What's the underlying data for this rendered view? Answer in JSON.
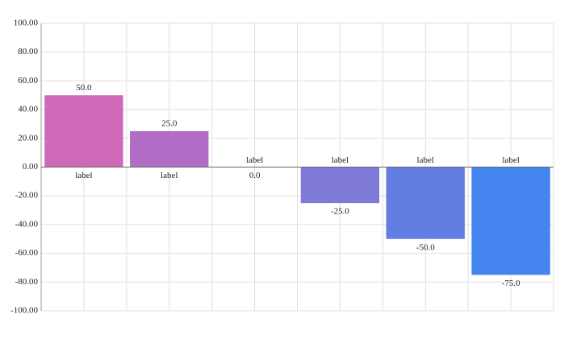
{
  "chart_data": {
    "type": "bar",
    "categories": [
      "label",
      "label",
      "label",
      "label",
      "label",
      "label"
    ],
    "values": [
      50,
      25,
      0,
      -25,
      -50,
      -75
    ],
    "value_labels": [
      "50.0",
      "25.0",
      "0.0",
      "-25.0",
      "-50.0",
      "-75.0"
    ],
    "colors": [
      "#cf69ba",
      "#b16dc5",
      "#9873cf",
      "#7f79d8",
      "#627ee3",
      "#4484ee"
    ],
    "ylim": [
      -100,
      100
    ],
    "yticks": [
      {
        "value": 100,
        "label": "100.00"
      },
      {
        "value": 80,
        "label": "80.00"
      },
      {
        "value": 60,
        "label": "60.00"
      },
      {
        "value": 40,
        "label": "40.00"
      },
      {
        "value": 20,
        "label": "20.00"
      },
      {
        "value": 0,
        "label": "0.00"
      },
      {
        "value": -20,
        "label": "-20.00"
      },
      {
        "value": -40,
        "label": "-40.00"
      },
      {
        "value": -60,
        "label": "-60.00"
      },
      {
        "value": -80,
        "label": "-80.00"
      },
      {
        "value": -100,
        "label": "-100.00"
      }
    ],
    "grid": true
  }
}
